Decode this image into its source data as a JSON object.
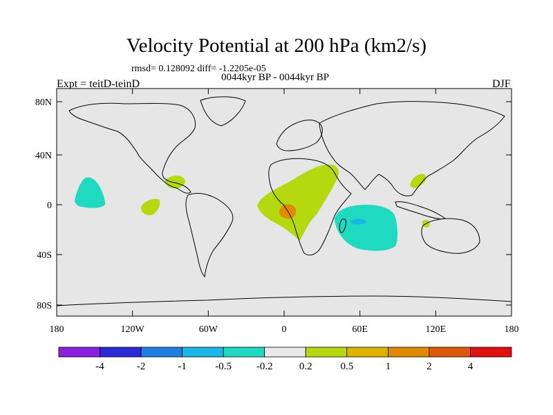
{
  "figure": {
    "title": "Velocity Potential at 200 hPa (km2/s)",
    "stats": "rmsd= 0.128092 diff= -1.2205e-05",
    "subtitle": "0044kyr BP - 0044kyr BP",
    "left_label": "Expt = teitD-teinD",
    "right_label": "DJF"
  },
  "axes": {
    "lat_ticks": [
      "80N",
      "40N",
      "0",
      "40S",
      "80S"
    ],
    "lon_ticks": [
      "180",
      "120W",
      "60W",
      "0",
      "60E",
      "120E",
      "180"
    ]
  },
  "colorbar": {
    "labels": [
      "-4",
      "-2",
      "-1",
      "-0.5",
      "-0.2",
      "0.2",
      "0.5",
      "1",
      "2",
      "4"
    ],
    "colors": [
      "#8a1fe0",
      "#2a2ad6",
      "#1e7fe0",
      "#19b7e6",
      "#1fd9c0",
      "#e8e8e8",
      "#b5d80f",
      "#e0b300",
      "#e08a00",
      "#e0580a",
      "#e01010"
    ]
  },
  "colors": {
    "ocean": "#e6e6e6",
    "land_outline": "#000000"
  }
}
